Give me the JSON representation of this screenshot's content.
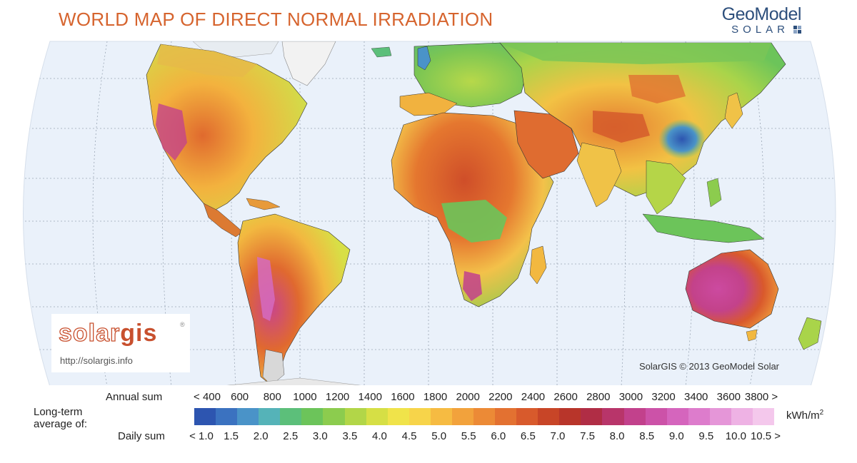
{
  "title": "WORLD MAP OF DIRECT NORMAL IRRADIATION",
  "brand": {
    "name": "GeoModel",
    "sub": "SOLAR"
  },
  "solargis": {
    "logo_solar": "solar",
    "logo_gis": "gis",
    "reg": "®",
    "url": "http://solargis.info"
  },
  "copyright": "SolarGIS © 2013 GeoModel Solar",
  "legend": {
    "longterm_label": "Long-term average of:",
    "annual_label": "Annual sum",
    "daily_label": "Daily sum",
    "unit": "kWh/m",
    "unit_sup": "2",
    "annual_ticks": [
      "< 400",
      "600",
      "800",
      "1000",
      "1200",
      "1400",
      "1600",
      "1800",
      "2000",
      "2200",
      "2400",
      "2600",
      "2800",
      "3000",
      "3200",
      "3400",
      "3600",
      "3800 >"
    ],
    "daily_ticks": [
      "< 1.0",
      "1.5",
      "2.0",
      "2.5",
      "3.0",
      "3.5",
      "4.0",
      "4.5",
      "5.0",
      "5.5",
      "6.0",
      "6.5",
      "7.0",
      "7.5",
      "8.0",
      "8.5",
      "9.0",
      "9.5",
      "10.0",
      "10.5 >"
    ],
    "colors": [
      "#2d55b0",
      "#3b72c0",
      "#4a93c8",
      "#55b3b8",
      "#5cbf7a",
      "#6cc45a",
      "#8ccc4e",
      "#b2d648",
      "#d6df45",
      "#f0e34a",
      "#f7d44a",
      "#f6bb42",
      "#f2a23c",
      "#ec8a36",
      "#e37131",
      "#d85a2c",
      "#c84527",
      "#b8352a",
      "#b02d45",
      "#b8356a",
      "#c2418c",
      "#cc52a8",
      "#d565bd",
      "#dd7ccc",
      "#e596d8",
      "#eeb2e4",
      "#f4c8ec"
    ]
  },
  "colors": {
    "title": "#d6642e",
    "ocean": "#eaf1fa",
    "brand": "#2d4f7c"
  }
}
